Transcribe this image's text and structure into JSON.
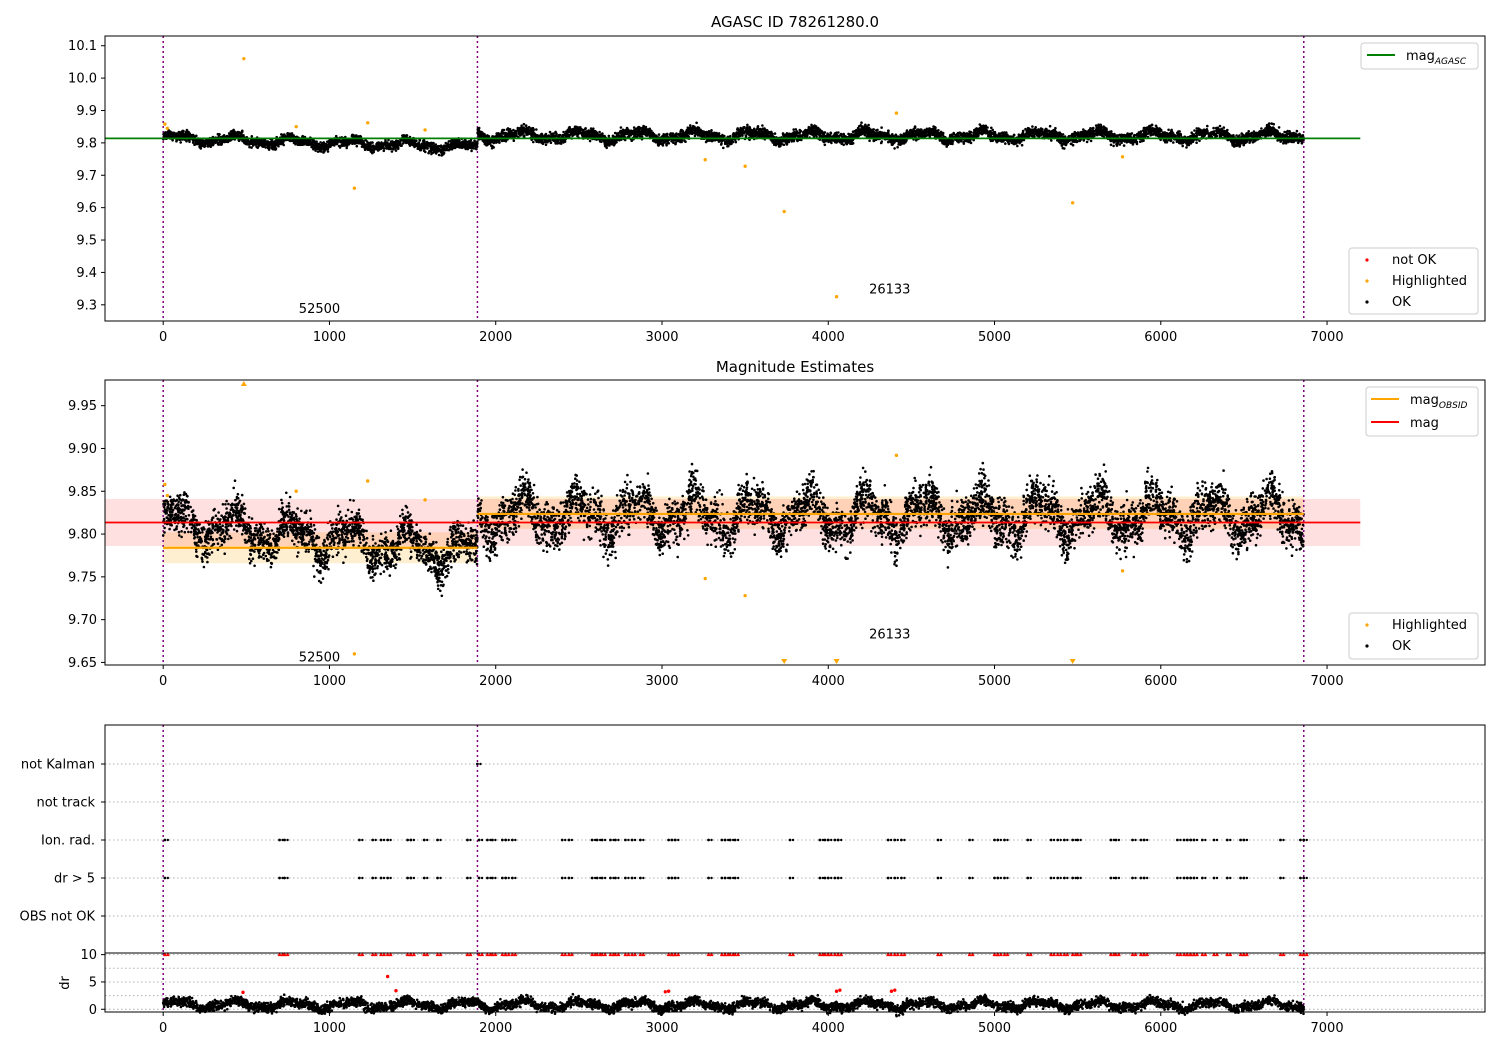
{
  "chart_data": [
    {
      "type": "scatter",
      "title": "AGASC ID 78261280.0",
      "xlabel": "",
      "ylabel": "",
      "xlim": [
        -350,
        7950
      ],
      "ylim": [
        9.25,
        10.13
      ],
      "x_ticks": [
        0,
        1000,
        2000,
        3000,
        4000,
        5000,
        6000,
        7000
      ],
      "y_ticks": [
        9.3,
        9.4,
        9.5,
        9.6,
        9.7,
        9.8,
        9.9,
        10.0,
        10.1
      ],
      "grid": false,
      "reference_lines": {
        "vertical_purple_dotted": [
          0,
          1890,
          6860
        ],
        "mag_agasc": {
          "value": 9.814,
          "x_range": [
            -350,
            7200
          ],
          "color": "#008000"
        }
      },
      "segment_labels": [
        {
          "text": "52500",
          "x": 940,
          "y": 9.29
        },
        {
          "text": "26133",
          "x": 4370,
          "y": 9.35
        }
      ],
      "legends": [
        {
          "placement": "top-right",
          "entries": [
            {
              "label_main": "mag",
              "label_sub": "AGASC",
              "style": "line",
              "color": "#008000"
            }
          ]
        },
        {
          "placement": "bottom-right",
          "entries": [
            {
              "label": "not OK",
              "style": "dot",
              "color": "#ff0000"
            },
            {
              "label": "Highlighted",
              "style": "dot",
              "color": "#ffa500"
            },
            {
              "label": "OK",
              "style": "dot",
              "color": "#000000"
            }
          ]
        }
      ],
      "series": [
        {
          "name": "OK",
          "color": "#000000",
          "kind": "dense-band",
          "segments": [
            {
              "x_range": [
                0,
                1890
              ],
              "level_start": 9.815,
              "level_end": 9.787,
              "scatter": 0.012
            },
            {
              "x_range": [
                1890,
                6860
              ],
              "level_start": 9.822,
              "level_end": 9.822,
              "scatter": 0.014
            }
          ]
        },
        {
          "name": "Highlighted",
          "color": "#ffa500",
          "points": [
            [
              10,
              9.858
            ],
            [
              25,
              9.845
            ],
            [
              485,
              10.06
            ],
            [
              800,
              9.85
            ],
            [
              1150,
              9.66
            ],
            [
              1230,
              9.862
            ],
            [
              1575,
              9.84
            ],
            [
              3260,
              9.748
            ],
            [
              3500,
              9.728
            ],
            [
              3735,
              9.588
            ],
            [
              4050,
              9.325
            ],
            [
              4410,
              9.892
            ],
            [
              5470,
              9.615
            ],
            [
              5770,
              9.757
            ]
          ]
        }
      ]
    },
    {
      "type": "scatter",
      "title": "Magnitude Estimates",
      "xlabel": "",
      "ylabel": "",
      "xlim": [
        -350,
        7950
      ],
      "ylim": [
        9.647,
        9.98
      ],
      "x_ticks": [
        0,
        1000,
        2000,
        3000,
        4000,
        5000,
        6000,
        7000
      ],
      "y_ticks": [
        9.65,
        9.7,
        9.75,
        9.8,
        9.85,
        9.9,
        9.95
      ],
      "grid": false,
      "reference_lines": {
        "vertical_purple_dotted": [
          0,
          1890,
          6860
        ],
        "mag": {
          "value": 9.8135,
          "x_range": [
            -350,
            7200
          ],
          "band": [
            9.786,
            9.841
          ],
          "color": "#ff0000"
        },
        "mag_obsid": [
          {
            "value": 9.784,
            "x_range": [
              0,
              1890
            ],
            "band": [
              9.766,
              9.802
            ]
          },
          {
            "value": 9.8235,
            "x_range": [
              1890,
              6860
            ],
            "band": [
              9.806,
              9.844
            ]
          }
        ]
      },
      "segment_labels": [
        {
          "text": "52500",
          "x": 940,
          "y": 9.657
        },
        {
          "text": "26133",
          "x": 4370,
          "y": 9.684
        }
      ],
      "legends": [
        {
          "placement": "top-right",
          "entries": [
            {
              "label_main": "mag",
              "label_sub": "OBSID",
              "style": "line",
              "color": "#ffa500"
            },
            {
              "label_main": "mag",
              "label_sub": "",
              "style": "line",
              "color": "#ff0000"
            }
          ]
        },
        {
          "placement": "bottom-right",
          "entries": [
            {
              "label": "Highlighted",
              "style": "dot",
              "color": "#ffa500"
            },
            {
              "label": "OK",
              "style": "dot",
              "color": "#000000"
            }
          ]
        }
      ],
      "series": [
        {
          "name": "OK",
          "color": "#000000",
          "kind": "dense-band",
          "segments": [
            {
              "x_range": [
                0,
                1890
              ],
              "level_start": 9.815,
              "level_end": 9.775,
              "scatter": 0.019
            },
            {
              "x_range": [
                1890,
                6860
              ],
              "level_start": 9.822,
              "level_end": 9.822,
              "scatter": 0.022
            }
          ]
        },
        {
          "name": "Highlighted",
          "color": "#ffa500",
          "points": [
            [
              10,
              9.858
            ],
            [
              25,
              9.845
            ],
            [
              800,
              9.85
            ],
            [
              1150,
              9.66
            ],
            [
              1230,
              9.862
            ],
            [
              1575,
              9.84
            ],
            [
              3260,
              9.748
            ],
            [
              3500,
              9.728
            ],
            [
              4410,
              9.892
            ],
            [
              5770,
              9.757
            ]
          ],
          "off_scale_up": [
            485
          ],
          "off_scale_down": [
            3735,
            4050,
            5470
          ]
        }
      ]
    },
    {
      "type": "scatter",
      "title": "",
      "xlabel": "",
      "ylabel": "",
      "xlim": [
        -350,
        7950
      ],
      "categories": [
        "not Kalman",
        "not track",
        "Ion. rad.",
        "dr > 5",
        "OBS not OK"
      ],
      "grid": true,
      "reference_lines": {
        "vertical_purple_dotted": [
          0,
          1890,
          6860
        ]
      },
      "flag_rows": {
        "not Kalman": [
          1890
        ],
        "not track": [],
        "Ion. rad.": [
          10,
          700,
          730,
          1180,
          1260,
          1310,
          1350,
          1470,
          1490,
          1570,
          1650,
          1830,
          1900,
          1950,
          1980,
          2040,
          2060,
          2100,
          2400,
          2440,
          2580,
          2610,
          2640,
          2690,
          2720,
          2780,
          2820,
          2870,
          3040,
          3060,
          3080,
          3280,
          3360,
          3380,
          3410,
          3440,
          3770,
          3950,
          3980,
          4000,
          4040,
          4060,
          4360,
          4400,
          4440,
          4660,
          4850,
          5000,
          5020,
          5060,
          5200,
          5340,
          5380,
          5420,
          5470,
          5500,
          5700,
          5730,
          5830,
          5880,
          5900,
          6100,
          6140,
          6160,
          6180,
          6200,
          6250,
          6320,
          6400,
          6480,
          6500,
          6720,
          6840,
          6860
        ],
        "dr > 5": [
          10,
          700,
          730,
          1180,
          1260,
          1310,
          1350,
          1470,
          1490,
          1570,
          1650,
          1830,
          1900,
          1950,
          1980,
          2040,
          2060,
          2100,
          2400,
          2440,
          2580,
          2610,
          2640,
          2690,
          2720,
          2780,
          2820,
          2870,
          3040,
          3060,
          3080,
          3280,
          3360,
          3380,
          3410,
          3440,
          3770,
          3950,
          3980,
          4000,
          4040,
          4060,
          4360,
          4400,
          4440,
          4660,
          4850,
          5000,
          5020,
          5060,
          5200,
          5340,
          5380,
          5420,
          5470,
          5500,
          5700,
          5730,
          5830,
          5880,
          5900,
          6100,
          6140,
          6160,
          6180,
          6200,
          6250,
          6320,
          6400,
          6480,
          6500,
          6720,
          6840,
          6860
        ],
        "OBS not OK": []
      }
    },
    {
      "type": "scatter",
      "title": "",
      "xlabel": "",
      "ylabel": "dr",
      "xlim": [
        -350,
        7950
      ],
      "ylim": [
        -0.5,
        10.3
      ],
      "x_ticks": [
        0,
        1000,
        2000,
        3000,
        4000,
        5000,
        6000,
        7000
      ],
      "y_ticks": [
        0,
        5,
        10
      ],
      "grid": true,
      "reference_lines": {
        "vertical_purple_dotted": [
          0,
          1890,
          6860
        ]
      },
      "series": [
        {
          "name": "OK",
          "color": "#000000",
          "kind": "dense-band",
          "segments": [
            {
              "x_range": [
                0,
                6860
              ],
              "level_start": 0.8,
              "level_end": 0.8,
              "scatter": 0.7
            }
          ]
        },
        {
          "name": "not OK",
          "color": "#ff0000",
          "points": [
            [
              480,
              3.1
            ],
            [
              1350,
              6.0
            ],
            [
              1400,
              3.4
            ],
            [
              3020,
              3.2
            ],
            [
              3040,
              3.3
            ],
            [
              4050,
              3.3
            ],
            [
              4070,
              3.5
            ],
            [
              4380,
              3.3
            ],
            [
              4400,
              3.5
            ]
          ],
          "capped_at_top": [
            10,
            700,
            730,
            1180,
            1260,
            1310,
            1350,
            1470,
            1490,
            1570,
            1650,
            1830,
            1900,
            1950,
            1980,
            2040,
            2060,
            2100,
            2400,
            2440,
            2580,
            2610,
            2640,
            2690,
            2720,
            2780,
            2820,
            2870,
            3040,
            3060,
            3080,
            3280,
            3360,
            3380,
            3410,
            3440,
            3770,
            3950,
            3980,
            4000,
            4040,
            4060,
            4360,
            4400,
            4440,
            4660,
            4850,
            5000,
            5020,
            5060,
            5200,
            5340,
            5380,
            5420,
            5470,
            5500,
            5700,
            5730,
            5830,
            5880,
            5900,
            6100,
            6140,
            6160,
            6180,
            6200,
            6250,
            6320,
            6400,
            6480,
            6500,
            6720,
            6840,
            6860
          ]
        }
      ]
    }
  ]
}
